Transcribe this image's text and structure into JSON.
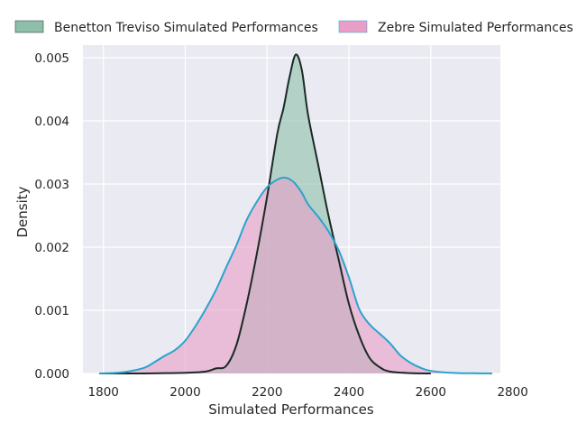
{
  "chart_data": {
    "type": "area",
    "title": "",
    "xlabel": "Simulated Performances",
    "ylabel": "Density",
    "xlim": [
      1750,
      2770
    ],
    "ylim": [
      0,
      0.0052
    ],
    "xticks": [
      1800,
      2000,
      2200,
      2400,
      2600,
      2800
    ],
    "xtick_labels": [
      "1800",
      "2000",
      "2200",
      "2400",
      "2600",
      "2800"
    ],
    "yticks": [
      0,
      0.001,
      0.002,
      0.003,
      0.004,
      0.005
    ],
    "ytick_labels": [
      "0.000",
      "0.001",
      "0.002",
      "0.003",
      "0.004",
      "0.005"
    ],
    "grid": true,
    "legend_position": "top",
    "series": [
      {
        "name": "Benetton Treviso Simulated Performances",
        "fill_color": "#8dbfaa",
        "line_color": "#1a2a24",
        "points": [
          [
            1790,
            0
          ],
          [
            1900,
            0
          ],
          [
            1950,
            5e-06
          ],
          [
            2000,
            1e-05
          ],
          [
            2050,
            3e-05
          ],
          [
            2075,
            8e-05
          ],
          [
            2100,
            0.00012
          ],
          [
            2125,
            0.00045
          ],
          [
            2150,
            0.0011
          ],
          [
            2175,
            0.0019
          ],
          [
            2200,
            0.0028
          ],
          [
            2225,
            0.0038
          ],
          [
            2240,
            0.0042
          ],
          [
            2255,
            0.0047
          ],
          [
            2270,
            0.00505
          ],
          [
            2285,
            0.0048
          ],
          [
            2300,
            0.0041
          ],
          [
            2325,
            0.0033
          ],
          [
            2350,
            0.0025
          ],
          [
            2375,
            0.0018
          ],
          [
            2400,
            0.0011
          ],
          [
            2425,
            0.0006
          ],
          [
            2450,
            0.00025
          ],
          [
            2475,
            0.0001
          ],
          [
            2500,
            3e-05
          ],
          [
            2550,
            5e-06
          ],
          [
            2600,
            0
          ]
        ]
      },
      {
        "name": "Zebre Simulated Performances",
        "fill_color": "#e89ec6",
        "line_color": "#2ba3cc",
        "points": [
          [
            1790,
            0
          ],
          [
            1830,
            1e-05
          ],
          [
            1860,
            3e-05
          ],
          [
            1900,
            9e-05
          ],
          [
            1925,
            0.00018
          ],
          [
            1950,
            0.00028
          ],
          [
            1975,
            0.00037
          ],
          [
            2000,
            0.00052
          ],
          [
            2025,
            0.00075
          ],
          [
            2050,
            0.00102
          ],
          [
            2075,
            0.00132
          ],
          [
            2100,
            0.00168
          ],
          [
            2125,
            0.00203
          ],
          [
            2150,
            0.00243
          ],
          [
            2175,
            0.00272
          ],
          [
            2200,
            0.00295
          ],
          [
            2225,
            0.00307
          ],
          [
            2245,
            0.0031
          ],
          [
            2265,
            0.00303
          ],
          [
            2285,
            0.00286
          ],
          [
            2300,
            0.00268
          ],
          [
            2325,
            0.00248
          ],
          [
            2350,
            0.00225
          ],
          [
            2375,
            0.00195
          ],
          [
            2400,
            0.00152
          ],
          [
            2425,
            0.00102
          ],
          [
            2450,
            0.00078
          ],
          [
            2475,
            0.00063
          ],
          [
            2500,
            0.00048
          ],
          [
            2525,
            0.00029
          ],
          [
            2550,
            0.00017
          ],
          [
            2575,
            9e-05
          ],
          [
            2600,
            4e-05
          ],
          [
            2650,
            1e-05
          ],
          [
            2700,
            3e-06
          ],
          [
            2750,
            0
          ]
        ]
      }
    ]
  }
}
